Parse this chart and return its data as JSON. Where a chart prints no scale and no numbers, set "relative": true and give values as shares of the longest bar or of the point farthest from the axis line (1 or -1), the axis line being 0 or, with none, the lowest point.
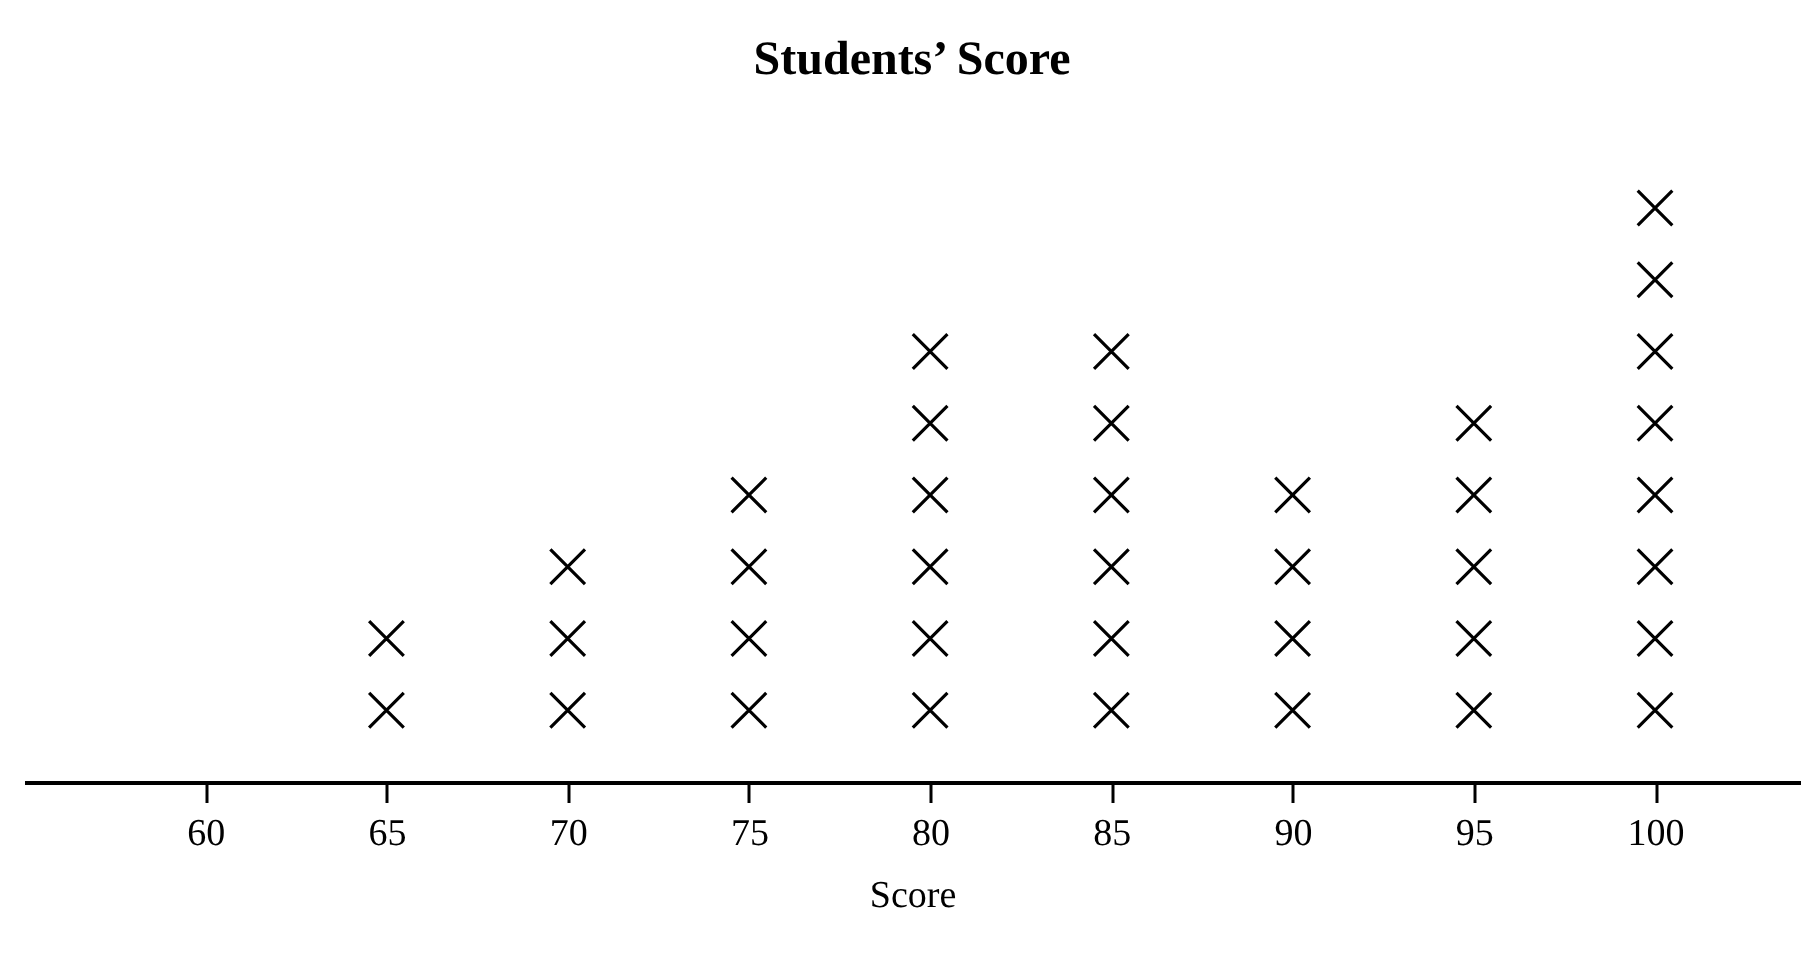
{
  "chart_data": {
    "type": "scatter",
    "title": "Students’ Score",
    "xlabel": "Score",
    "x": [
      65,
      65,
      70,
      70,
      70,
      75,
      75,
      75,
      75,
      80,
      80,
      80,
      80,
      80,
      80,
      85,
      85,
      85,
      85,
      85,
      85,
      90,
      90,
      90,
      90,
      95,
      95,
      95,
      95,
      95,
      100,
      100,
      100,
      100,
      100,
      100,
      100,
      100
    ],
    "values": [
      0.125,
      0.25,
      0.125,
      0.25,
      0.375,
      0.125,
      0.25,
      0.375,
      0.5,
      0.125,
      0.25,
      0.375,
      0.5,
      0.625,
      0.75,
      0.125,
      0.25,
      0.375,
      0.5,
      0.625,
      0.75,
      0.125,
      0.25,
      0.375,
      0.5,
      0.125,
      0.25,
      0.375,
      0.5,
      0.625,
      0.125,
      0.25,
      0.375,
      0.5,
      0.625,
      0.75,
      0.875,
      1
    ],
    "relative": true,
    "color": "#000000",
    "marker": "cross",
    "xlim": [
      55,
      104
    ],
    "xticks": [
      60,
      65,
      70,
      75,
      80,
      85,
      90,
      95,
      100
    ],
    "tick_labels": "x",
    "grid": false
  }
}
